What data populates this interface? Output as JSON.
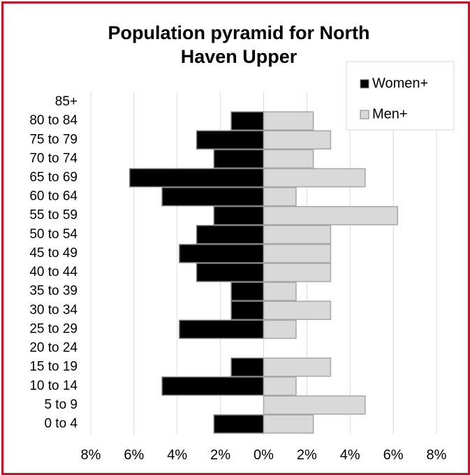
{
  "chart_data": {
    "type": "pyramid",
    "title": "Population pyramid for North Haven Upper",
    "categories": [
      "85+",
      "80 to 84",
      "75 to 79",
      "70 to 74",
      "65 to 69",
      "60 to 64",
      "55 to 59",
      "50 to 54",
      "45 to 49",
      "40 to 44",
      "35 to 39",
      "30 to 34",
      "25 to 29",
      "20 to 24",
      "15 to 19",
      "10 to 14",
      "5 to 9",
      "0 to 4"
    ],
    "series": [
      {
        "name": "Women+",
        "color": "#000000",
        "values": [
          0,
          -1.5,
          -3.1,
          -2.3,
          -6.2,
          -4.7,
          -2.3,
          -3.1,
          -3.9,
          -3.1,
          -1.5,
          -1.5,
          -3.9,
          0,
          -1.5,
          -4.7,
          0,
          -2.3
        ]
      },
      {
        "name": "Men+",
        "color": "#d9d9d9",
        "values": [
          0,
          2.3,
          3.1,
          2.3,
          4.7,
          1.5,
          6.2,
          3.1,
          3.1,
          3.1,
          1.5,
          3.1,
          1.5,
          0,
          3.1,
          1.5,
          4.7,
          2.3
        ]
      }
    ],
    "xlim": [
      -8,
      8
    ],
    "xticks": [
      {
        "value": -8,
        "label": "8%"
      },
      {
        "value": -6,
        "label": "6%"
      },
      {
        "value": -4,
        "label": "4%"
      },
      {
        "value": -2,
        "label": "2%"
      },
      {
        "value": 0,
        "label": "0%"
      },
      {
        "value": 2,
        "label": "2%"
      },
      {
        "value": 4,
        "label": "4%"
      },
      {
        "value": 6,
        "label": "6%"
      },
      {
        "value": 8,
        "label": "8%"
      }
    ],
    "grid": true,
    "legend": "top-right"
  }
}
